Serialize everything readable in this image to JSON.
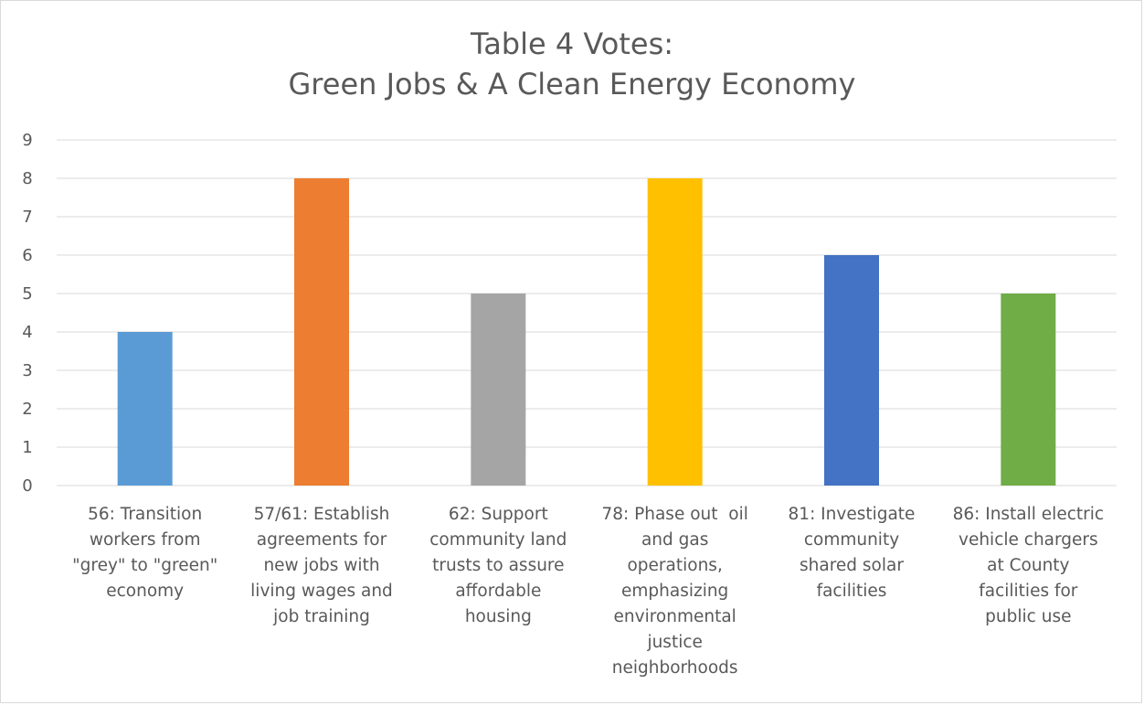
{
  "chart_data": {
    "type": "bar",
    "title_lines": [
      "Table 4 Votes:",
      "Green Jobs & A Clean Energy Economy"
    ],
    "xlabel": "",
    "ylabel": "",
    "ylim": [
      0,
      9
    ],
    "yticks": [
      "0",
      "1",
      "2",
      "3",
      "4",
      "5",
      "6",
      "7",
      "8",
      "9"
    ],
    "grid": true,
    "legend": "none",
    "categories": [
      [
        "56: Transition",
        "workers from",
        "\"grey\" to \"green\"",
        "economy"
      ],
      [
        "57/61: Establish",
        "agreements for",
        "new jobs with",
        "living wages and",
        "job training"
      ],
      [
        "62: Support",
        "community land",
        "trusts to assure",
        "affordable",
        "housing"
      ],
      [
        "78: Phase out  oil",
        "and gas",
        "operations,",
        "emphasizing",
        "environmental",
        "justice",
        "neighborhoods"
      ],
      [
        "81: Investigate",
        "community",
        "shared solar",
        "facilities"
      ],
      [
        "86: Install electric",
        "vehicle chargers",
        "at County",
        "facilities for",
        "public use"
      ]
    ],
    "values": [
      4,
      8,
      5,
      8,
      6,
      5
    ],
    "colors": [
      "#5b9bd5",
      "#ed7d31",
      "#a5a5a5",
      "#ffc000",
      "#4472c4",
      "#70ad47"
    ]
  }
}
